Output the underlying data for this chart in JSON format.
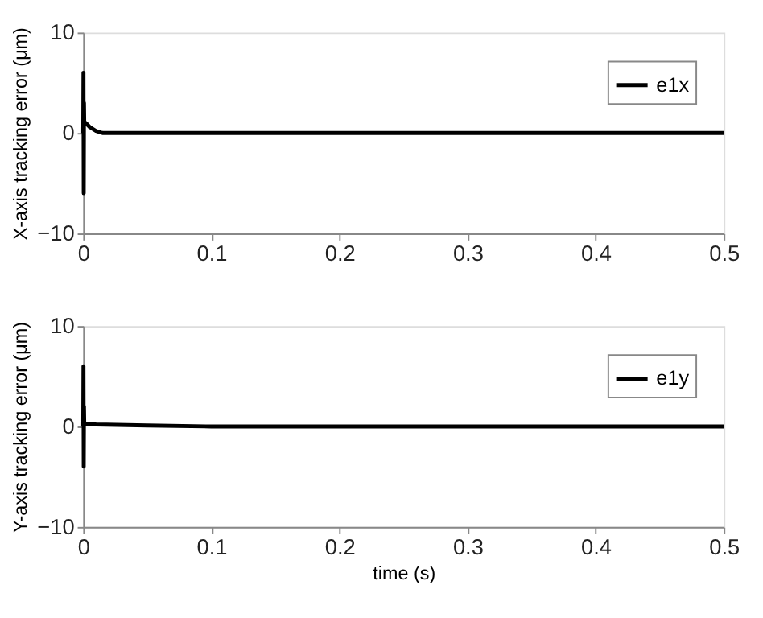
{
  "chart_data": [
    {
      "type": "line",
      "ylabel": "X-axis tracking error (μm)",
      "xlim": [
        0,
        0.5
      ],
      "xticks": [
        0,
        0.1,
        0.2,
        0.3,
        0.4,
        0.5
      ],
      "ylim": [
        -10,
        10
      ],
      "yticks": [
        -10,
        0,
        10
      ],
      "grid": false,
      "legend": "top right",
      "line_style": "solid",
      "series": [
        {
          "name": "e1x",
          "color": "#000000",
          "x": [
            0,
            0.0002,
            0.0004,
            0.0006,
            0.0008,
            0.002,
            0.005,
            0.01,
            0.015,
            0.02,
            0.1,
            0.2,
            0.3,
            0.4,
            0.5
          ],
          "values": [
            0,
            6,
            -6,
            3,
            1,
            1,
            0.6,
            0.2,
            0,
            0,
            0,
            0,
            0,
            0,
            0
          ]
        }
      ]
    },
    {
      "type": "line",
      "xlabel": "time (s)",
      "ylabel": "Y-axis tracking error (μm)",
      "xlim": [
        0,
        0.5
      ],
      "xticks": [
        0,
        0.1,
        0.2,
        0.3,
        0.4,
        0.5
      ],
      "ylim": [
        -10,
        10
      ],
      "yticks": [
        -10,
        0,
        10
      ],
      "grid": false,
      "legend": "top right",
      "line_style": "solid",
      "series": [
        {
          "name": "e1y",
          "color": "#000000",
          "x": [
            0,
            0.0002,
            0.0004,
            0.0006,
            0.0008,
            0.002,
            0.01,
            0.05,
            0.1,
            0.2,
            0.3,
            0.4,
            0.5
          ],
          "values": [
            0,
            6,
            -4,
            2,
            0.3,
            0.3,
            0.2,
            0.1,
            0,
            0,
            0,
            0,
            0
          ]
        }
      ]
    }
  ]
}
